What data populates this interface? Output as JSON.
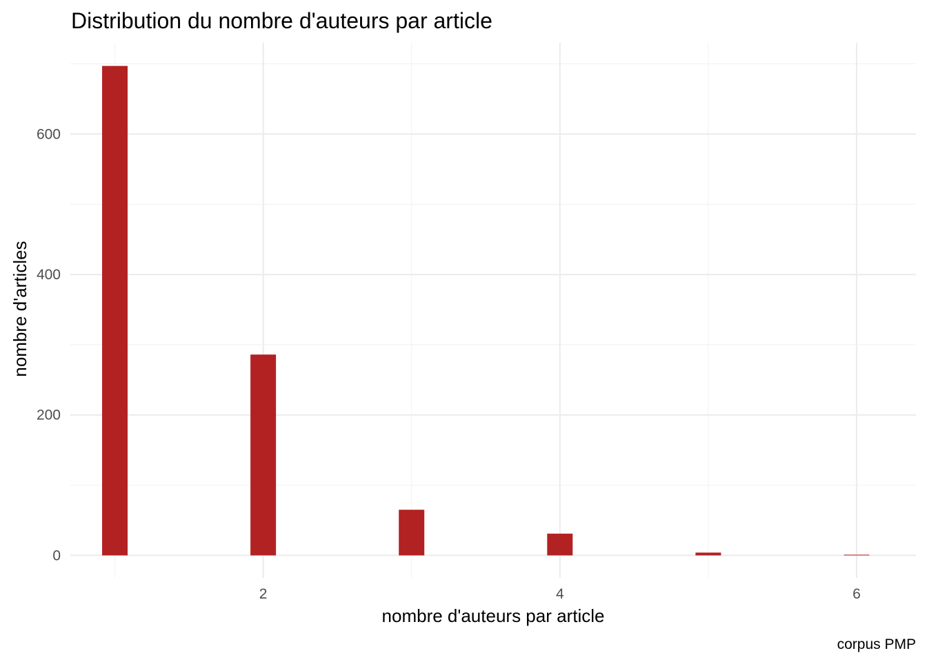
{
  "chart_data": {
    "type": "bar",
    "title": "Distribution du nombre d'auteurs par article",
    "xlabel": "nombre d'auteurs par article",
    "ylabel": "nombre d'articles",
    "caption": "corpus PMP",
    "x": [
      1,
      2,
      3,
      4,
      5,
      6
    ],
    "values": [
      697,
      286,
      65,
      31,
      4,
      1
    ],
    "xlim": [
      0.7,
      6.4
    ],
    "ylim": [
      -32,
      730
    ],
    "x_ticks": [
      2,
      4,
      6
    ],
    "x_tick_labels": [
      "2",
      "4",
      "6"
    ],
    "y_ticks": [
      0,
      200,
      400,
      600
    ],
    "y_tick_labels": [
      "0",
      "200",
      "400",
      "600"
    ],
    "grid": true,
    "bar_color": "#B22222"
  }
}
